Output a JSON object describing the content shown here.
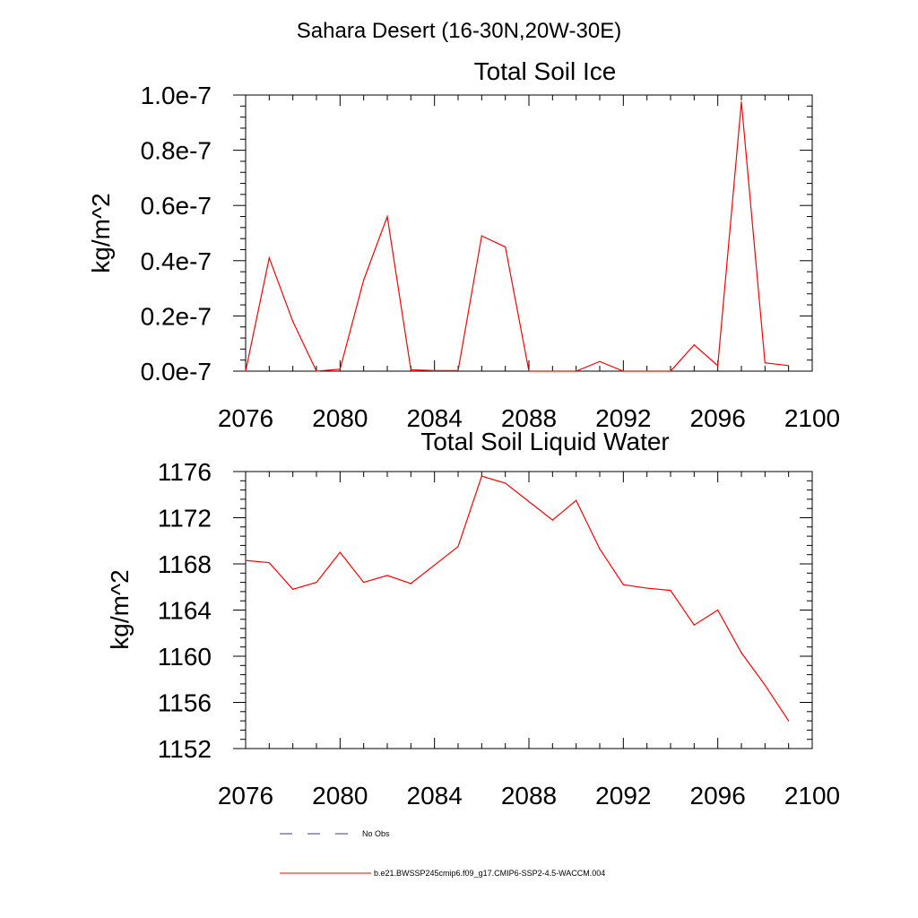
{
  "figure": {
    "title": "Sahara Desert (16-30N,20W-30E)"
  },
  "legend": {
    "items": [
      {
        "label": "No Obs",
        "color": "#3a3a8c",
        "style": "dashed"
      },
      {
        "label": "b.e21.BWSSP245cmip6.f09_g17.CMIP6-SSP2-4.5-WACCM.004",
        "color": "#ff0000",
        "style": "solid"
      }
    ]
  },
  "chart_data": [
    {
      "type": "line",
      "title": "Total Soil Ice",
      "ylabel": "kg/m^2",
      "xlabel": "",
      "xlim": [
        2076,
        2100
      ],
      "ylim": [
        0,
        1e-07
      ],
      "xticks": [
        2076,
        2080,
        2084,
        2088,
        2092,
        2096,
        2100
      ],
      "xtick_labels": [
        "2076",
        "2080",
        "2084",
        "2088",
        "2092",
        "2096",
        "2100"
      ],
      "yticks": [
        0,
        2e-08,
        4e-08,
        6e-08,
        8e-08,
        1e-07
      ],
      "ytick_labels": [
        "0.0e-7",
        "0.2e-7",
        "0.4e-7",
        "0.6e-7",
        "0.8e-7",
        "1.0e-7"
      ],
      "series": [
        {
          "name": "b.e21.BWSSP245cmip6.f09_g17.CMIP6-SSP2-4.5-WACCM.004",
          "color": "#ff0000",
          "x": [
            2076,
            2077,
            2078,
            2079,
            2080,
            2081,
            2082,
            2083,
            2084,
            2085,
            2086,
            2087,
            2088,
            2089,
            2090,
            2091,
            2092,
            2093,
            2094,
            2095,
            2096,
            2097,
            2098,
            2099
          ],
          "y": [
            0.0,
            4.1e-08,
            1.8e-08,
            0.0,
            7e-10,
            3.3e-08,
            5.6e-08,
            5e-10,
            2e-10,
            2e-10,
            4.9e-08,
            4.5e-08,
            0.0,
            0.0,
            0.0,
            3.5e-09,
            0.0,
            0.0,
            0.0,
            9.5e-09,
            2e-09,
            9.75e-08,
            3e-09,
            2e-09
          ]
        }
      ]
    },
    {
      "type": "line",
      "title": "Total Soil Liquid Water",
      "ylabel": "kg/m^2",
      "xlabel": "",
      "xlim": [
        2076,
        2100
      ],
      "ylim": [
        1152,
        1176
      ],
      "xticks": [
        2076,
        2080,
        2084,
        2088,
        2092,
        2096,
        2100
      ],
      "xtick_labels": [
        "2076",
        "2080",
        "2084",
        "2088",
        "2092",
        "2096",
        "2100"
      ],
      "yticks": [
        1152,
        1156,
        1160,
        1164,
        1168,
        1172,
        1176
      ],
      "ytick_labels": [
        "1152",
        "1156",
        "1160",
        "1164",
        "1168",
        "1172",
        "1176"
      ],
      "series": [
        {
          "name": "b.e21.BWSSP245cmip6.f09_g17.CMIP6-SSP2-4.5-WACCM.004",
          "color": "#ff0000",
          "x": [
            2076,
            2077,
            2078,
            2079,
            2080,
            2081,
            2082,
            2083,
            2084,
            2085,
            2086,
            2087,
            2088,
            2089,
            2090,
            2091,
            2092,
            2093,
            2094,
            2095,
            2096,
            2097,
            2098,
            2099
          ],
          "y": [
            1168.3,
            1168.1,
            1165.8,
            1166.4,
            1169.0,
            1166.4,
            1167.0,
            1166.3,
            1167.9,
            1169.5,
            1175.6,
            1175.0,
            1173.4,
            1171.8,
            1173.5,
            1169.3,
            1166.2,
            1165.9,
            1165.7,
            1162.7,
            1164.0,
            1160.3,
            1157.5,
            1154.4
          ]
        }
      ]
    }
  ]
}
